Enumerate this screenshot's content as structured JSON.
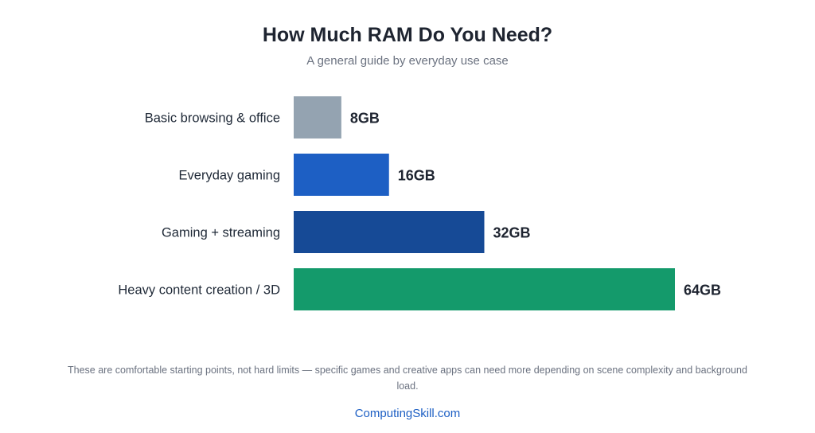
{
  "chart_data": {
    "type": "bar",
    "orientation": "horizontal",
    "title": "How Much RAM Do You Need?",
    "subtitle": "A general guide by everyday use case",
    "categories": [
      "Basic browsing & office",
      "Everyday gaming",
      "Gaming + streaming",
      "Heavy content creation / 3D"
    ],
    "values": [
      8,
      16,
      32,
      64
    ],
    "value_labels": [
      "8GB",
      "16GB",
      "32GB",
      "64GB"
    ],
    "colors": [
      "#94a3b1",
      "#1d5fc4",
      "#164a96",
      "#149a6b"
    ],
    "unit": "GB",
    "xlim": [
      0,
      64
    ],
    "grid": false,
    "legend": "none"
  },
  "footnote": "These are comfortable starting points, not hard limits — specific games and creative apps can need more depending on scene complexity and background load.",
  "source": "ComputingSkill.com"
}
